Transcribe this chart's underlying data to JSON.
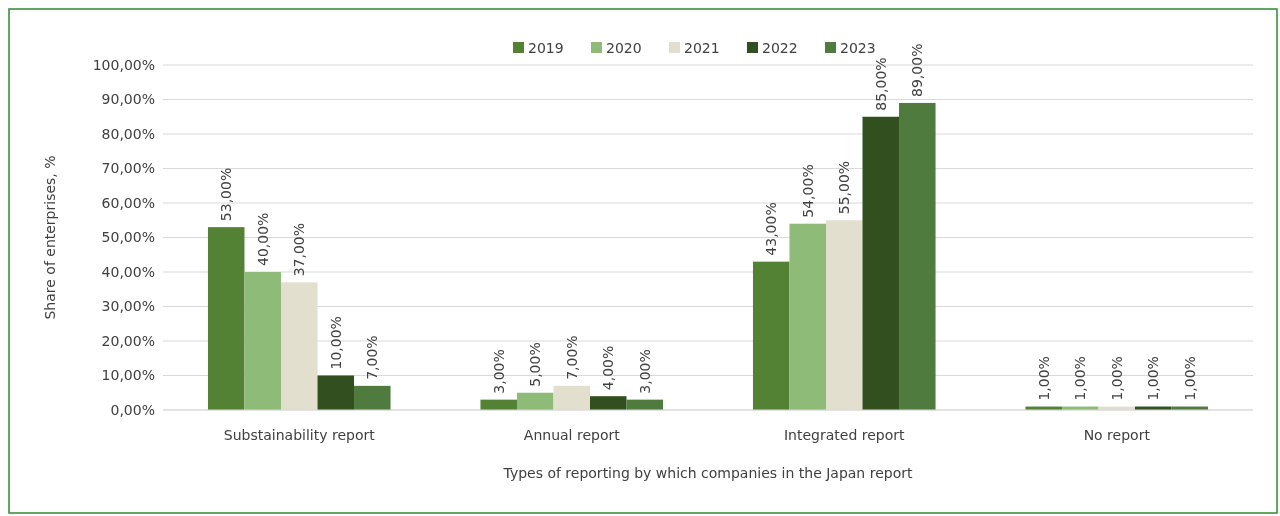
{
  "chart_data": {
    "type": "bar",
    "xlabel": "Types of reporting by which companies in the Japan report",
    "ylabel": "Share of enterprises, %",
    "categories": [
      "Substainability report",
      "Annual report",
      "Integrated report",
      "No report"
    ],
    "series": [
      {
        "name": "2019",
        "color": "#548235",
        "values": [
          53,
          3,
          43,
          1
        ],
        "value_labels": [
          "53,00%",
          "3,00%",
          "43,00%",
          "1,00%"
        ]
      },
      {
        "name": "2020",
        "color": "#8fbb79",
        "values": [
          40,
          5,
          54,
          1
        ],
        "value_labels": [
          "40,00%",
          "5,00%",
          "54,00%",
          "1,00%"
        ]
      },
      {
        "name": "2021",
        "color": "#e2dfce",
        "values": [
          37,
          7,
          55,
          1
        ],
        "value_labels": [
          "37,00%",
          "7,00%",
          "55,00%",
          "1,00%"
        ]
      },
      {
        "name": "2022",
        "color": "#314f1f",
        "values": [
          10,
          4,
          85,
          1
        ],
        "value_labels": [
          "10,00%",
          "4,00%",
          "85,00%",
          "1,00%"
        ]
      },
      {
        "name": "2023",
        "color": "#507b3e",
        "values": [
          7,
          3,
          89,
          1
        ],
        "value_labels": [
          "7,00%",
          "3,00%",
          "89,00%",
          "1,00%"
        ]
      }
    ],
    "ylim": [
      0,
      100
    ],
    "yticks": [
      {
        "value": 0,
        "label": "0,00%"
      },
      {
        "value": 10,
        "label": "10,00%"
      },
      {
        "value": 20,
        "label": "20,00%"
      },
      {
        "value": 30,
        "label": "30,00%"
      },
      {
        "value": 40,
        "label": "40,00%"
      },
      {
        "value": 50,
        "label": "50,00%"
      },
      {
        "value": 60,
        "label": "60,00%"
      },
      {
        "value": 70,
        "label": "70,00%"
      },
      {
        "value": 80,
        "label": "80,00%"
      },
      {
        "value": 90,
        "label": "90,00%"
      },
      {
        "value": 100,
        "label": "100,00%"
      }
    ],
    "grid": "y",
    "legend": "top"
  }
}
